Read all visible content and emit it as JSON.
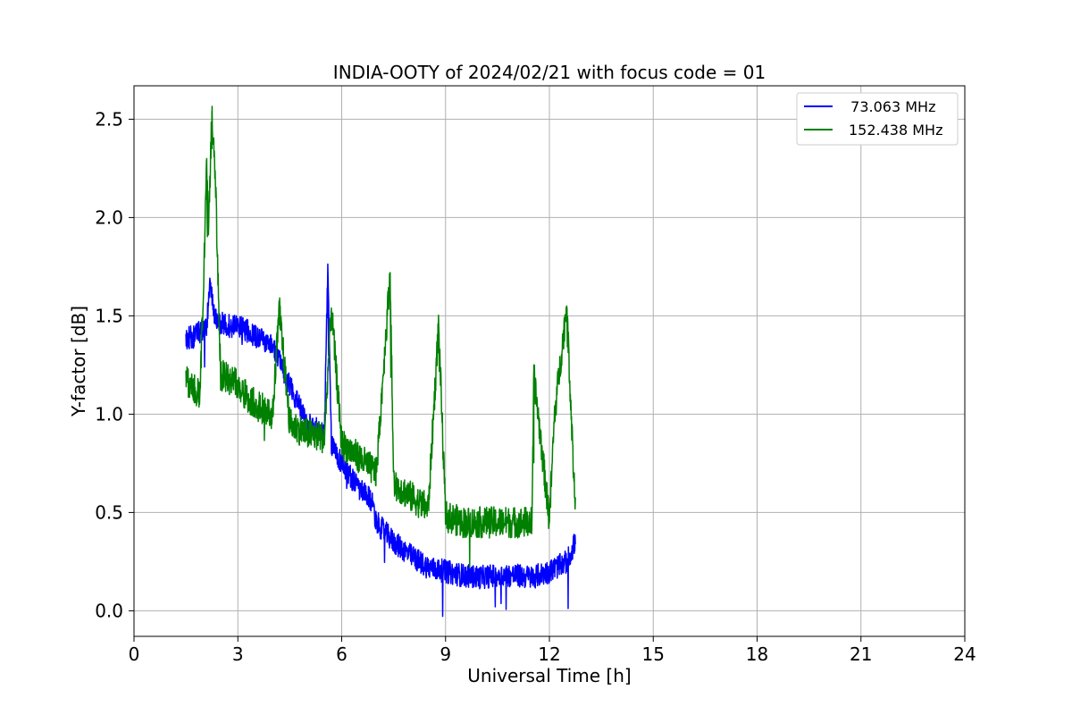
{
  "chart_data": {
    "type": "line",
    "title": "INDIA-OOTY of 2024/02/21 with focus code = 01",
    "xlabel": "Universal Time [h]",
    "ylabel": "Y-factor [dB]",
    "xlim": [
      0,
      24
    ],
    "ylim": [
      -0.13,
      2.67
    ],
    "x_ticks": [
      0,
      3,
      6,
      9,
      12,
      15,
      18,
      21,
      24
    ],
    "x_tick_labels": [
      "0",
      "3",
      "6",
      "9",
      "12",
      "15",
      "18",
      "21",
      "24"
    ],
    "y_ticks": [
      0.0,
      0.5,
      1.0,
      1.5,
      2.0,
      2.5
    ],
    "y_tick_labels": [
      "0.0",
      "0.5",
      "1.0",
      "1.5",
      "2.0",
      "2.5"
    ],
    "grid": true,
    "legend_position": "top-right",
    "series": [
      {
        "name": "  73.063 MHz",
        "color": "#0000ff",
        "x": [
          1.5,
          1.8,
          2.1,
          2.2,
          2.3,
          2.6,
          3.0,
          3.5,
          4.0,
          4.5,
          5.0,
          5.5,
          5.6,
          5.7,
          6.0,
          6.5,
          6.9,
          7.0,
          7.5,
          8.0,
          8.5,
          9.0,
          9.5,
          10.0,
          10.5,
          11.0,
          11.5,
          12.0,
          12.5,
          12.75
        ],
        "y": [
          1.38,
          1.4,
          1.45,
          1.68,
          1.5,
          1.45,
          1.45,
          1.4,
          1.35,
          1.15,
          0.95,
          0.9,
          1.74,
          0.85,
          0.75,
          0.62,
          0.55,
          0.45,
          0.35,
          0.28,
          0.22,
          0.2,
          0.18,
          0.17,
          0.18,
          0.18,
          0.17,
          0.2,
          0.25,
          0.35
        ]
      },
      {
        "name": "152.438 MHz",
        "color": "#008000",
        "x": [
          1.5,
          1.6,
          1.9,
          2.0,
          2.1,
          2.15,
          2.25,
          2.35,
          2.5,
          3.0,
          3.2,
          3.5,
          4.0,
          4.2,
          4.5,
          5.0,
          5.5,
          5.7,
          6.0,
          6.5,
          7.0,
          7.4,
          7.5,
          8.0,
          8.5,
          8.8,
          9.0,
          9.5,
          10.0,
          10.5,
          11.0,
          11.5,
          11.55,
          12.0,
          12.15,
          12.5,
          12.75
        ],
        "y": [
          1.2,
          1.15,
          1.1,
          1.6,
          2.3,
          1.9,
          2.54,
          2.2,
          1.2,
          1.15,
          1.1,
          1.05,
          1.0,
          1.53,
          0.95,
          0.9,
          0.88,
          1.54,
          0.85,
          0.78,
          0.7,
          1.72,
          0.65,
          0.58,
          0.52,
          1.46,
          0.48,
          0.45,
          0.45,
          0.45,
          0.45,
          0.45,
          1.2,
          0.46,
          1.0,
          1.55,
          0.5
        ]
      }
    ]
  }
}
